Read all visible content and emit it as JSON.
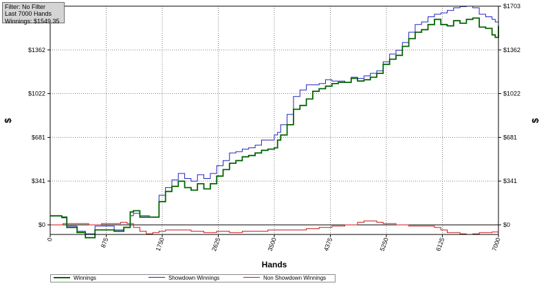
{
  "info_box": {
    "filter": "Filter: No Filter",
    "range": "Last 7000 Hands",
    "winnings": "Winnings: $1549.35"
  },
  "chart_data": {
    "type": "line",
    "xlabel": "Hands",
    "ylabel_left": "$",
    "ylabel_right": "$",
    "xlim": [
      0,
      7000
    ],
    "ylim": [
      -75,
      1703
    ],
    "x_ticks": [
      0,
      875,
      1750,
      2625,
      3500,
      4375,
      5250,
      6125,
      7000
    ],
    "x_tick_labels": [
      "0",
      "875",
      "1750",
      "2625",
      "3500",
      "4375",
      "5250",
      "6125",
      "7000"
    ],
    "y_ticks": [
      0,
      341,
      681,
      1022,
      1362,
      1703
    ],
    "y_tick_labels": [
      "$0",
      "$341",
      "$681",
      "$1022",
      "$1362",
      "$1703"
    ],
    "grid": true,
    "legend_position": "bottom-left",
    "series": [
      {
        "name": "Winnings",
        "color": "#006400",
        "x": [
          0,
          180,
          260,
          420,
          550,
          700,
          850,
          1000,
          1150,
          1250,
          1300,
          1400,
          1550,
          1700,
          1800,
          1900,
          2000,
          2100,
          2200,
          2300,
          2400,
          2500,
          2600,
          2700,
          2800,
          2900,
          3000,
          3100,
          3200,
          3300,
          3400,
          3500,
          3550,
          3600,
          3700,
          3800,
          3900,
          4000,
          4100,
          4200,
          4300,
          4400,
          4500,
          4600,
          4700,
          4800,
          4900,
          5000,
          5100,
          5200,
          5300,
          5400,
          5500,
          5600,
          5700,
          5800,
          5900,
          6000,
          6100,
          6200,
          6300,
          6400,
          6500,
          6600,
          6700,
          6800,
          6900,
          6950,
          7000
        ],
        "y": [
          70,
          60,
          -20,
          -60,
          -100,
          -40,
          -40,
          -50,
          -20,
          100,
          110,
          60,
          60,
          180,
          260,
          300,
          340,
          290,
          270,
          320,
          280,
          320,
          380,
          430,
          480,
          500,
          530,
          540,
          560,
          580,
          590,
          600,
          660,
          700,
          780,
          900,
          930,
          980,
          1040,
          1060,
          1080,
          1100,
          1110,
          1110,
          1140,
          1120,
          1130,
          1150,
          1180,
          1250,
          1290,
          1320,
          1390,
          1450,
          1500,
          1520,
          1560,
          1600,
          1560,
          1550,
          1590,
          1570,
          1600,
          1610,
          1540,
          1530,
          1480,
          1460,
          1549
        ]
      },
      {
        "name": "Showdown Winnings",
        "color": "#2020c0",
        "x": [
          0,
          180,
          260,
          420,
          550,
          700,
          850,
          1000,
          1150,
          1250,
          1300,
          1400,
          1550,
          1700,
          1800,
          1900,
          2000,
          2100,
          2200,
          2300,
          2400,
          2500,
          2600,
          2700,
          2800,
          2900,
          3000,
          3100,
          3200,
          3300,
          3400,
          3500,
          3550,
          3600,
          3700,
          3800,
          3900,
          4000,
          4100,
          4200,
          4300,
          4400,
          4500,
          4600,
          4700,
          4800,
          4900,
          5000,
          5100,
          5200,
          5300,
          5400,
          5500,
          5600,
          5700,
          5800,
          5900,
          6000,
          6100,
          6200,
          6300,
          6400,
          6500,
          6600,
          6700,
          6800,
          6900,
          6950,
          7000
        ],
        "y": [
          70,
          55,
          -10,
          -50,
          -70,
          -10,
          -10,
          -40,
          -20,
          70,
          90,
          70,
          60,
          230,
          290,
          350,
          400,
          360,
          340,
          390,
          360,
          400,
          460,
          500,
          560,
          570,
          590,
          600,
          620,
          660,
          660,
          700,
          720,
          780,
          860,
          1000,
          1050,
          1090,
          1090,
          1100,
          1130,
          1120,
          1120,
          1110,
          1150,
          1140,
          1160,
          1180,
          1200,
          1270,
          1330,
          1360,
          1420,
          1500,
          1560,
          1580,
          1620,
          1640,
          1650,
          1670,
          1690,
          1700,
          1703,
          1690,
          1640,
          1620,
          1600,
          1580,
          1610
        ]
      },
      {
        "name": "Non Showdown Winnings",
        "color": "#c81414",
        "x": [
          0,
          200,
          400,
          600,
          800,
          1000,
          1100,
          1200,
          1300,
          1400,
          1500,
          1600,
          1700,
          1800,
          2000,
          2200,
          2400,
          2600,
          2800,
          3000,
          3200,
          3400,
          3600,
          3800,
          4000,
          4200,
          4400,
          4600,
          4800,
          4900,
          5000,
          5100,
          5200,
          5400,
          5600,
          5800,
          6000,
          6100,
          6200,
          6300,
          6400,
          6500,
          6600,
          6700,
          6800,
          6900,
          7000
        ],
        "y": [
          0,
          10,
          10,
          0,
          10,
          10,
          20,
          10,
          -20,
          -50,
          -70,
          -60,
          -50,
          -40,
          -40,
          -50,
          -60,
          -50,
          -60,
          -50,
          -50,
          -40,
          -40,
          -40,
          -30,
          -20,
          -10,
          0,
          20,
          30,
          30,
          20,
          10,
          0,
          -10,
          -10,
          -20,
          -40,
          -60,
          -60,
          -70,
          -75,
          -70,
          -60,
          -60,
          -55,
          -50
        ]
      }
    ]
  }
}
